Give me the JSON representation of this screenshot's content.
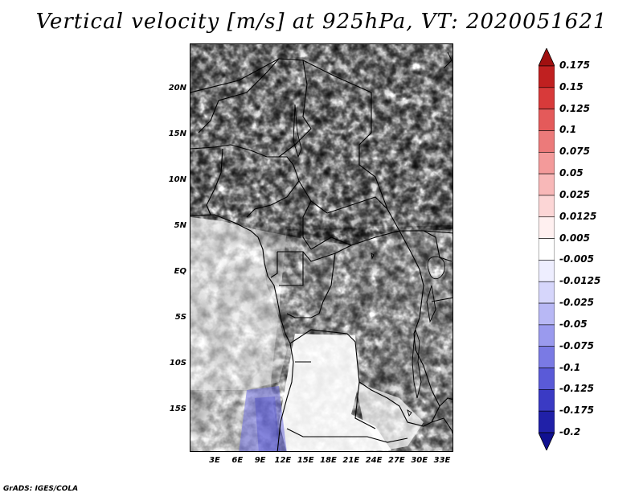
{
  "title": "Vertical velocity [m/s] at 925hPa, VT: 2020051621",
  "footer": "GrADS: IGES/COLA",
  "y_axis_labels": [
    "20N",
    "15N",
    "10N",
    "5N",
    "EQ",
    "5S",
    "10S",
    "15S"
  ],
  "x_axis_labels": [
    "3E",
    "6E",
    "9E",
    "12E",
    "15E",
    "18E",
    "21E",
    "24E",
    "27E",
    "30E",
    "33E"
  ],
  "colorbar": {
    "labels": [
      "0.175",
      "0.15",
      "0.125",
      "0.1",
      "0.075",
      "0.05",
      "0.025",
      "0.0125",
      "0.005",
      "-0.005",
      "-0.0125",
      "-0.025",
      "-0.05",
      "-0.075",
      "-0.1",
      "-0.125",
      "-0.175",
      "-0.2"
    ],
    "colors": [
      "#a01010",
      "#c02020",
      "#d83a3a",
      "#e45a5a",
      "#ec7a7a",
      "#f39a9a",
      "#f8b8b8",
      "#fcd6d6",
      "#fff0f0",
      "#ffffff",
      "#eeeeff",
      "#d6d6fb",
      "#b8b8f5",
      "#9a9aee",
      "#7a7ae4",
      "#5a5ad8",
      "#3a3ac4",
      "#2020a8",
      "#101090"
    ]
  },
  "map": {
    "region": "Central Africa",
    "lon_range": [
      0,
      35
    ],
    "lat_range": [
      -20,
      25
    ],
    "variable": "vertical velocity",
    "units": "m/s",
    "level": "925hPa"
  }
}
